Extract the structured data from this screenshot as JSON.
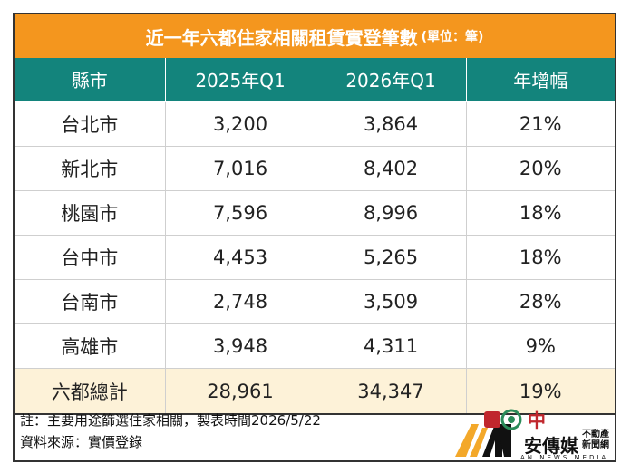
{
  "title": "近一年六都住家相關租賃實登筆數",
  "unit": "(單位：筆)",
  "headers": [
    "縣市",
    "2025年Q1",
    "2026年Q1",
    "年增幅"
  ],
  "rows": [
    [
      "台北市",
      "3,200",
      "3,864",
      "21%"
    ],
    [
      "新北市",
      "7,016",
      "8,402",
      "20%"
    ],
    [
      "桃園市",
      "7,596",
      "8,996",
      "18%"
    ],
    [
      "台中市",
      "4,453",
      "5,265",
      "18%"
    ],
    [
      "台南市",
      "2,748",
      "3,509",
      "28%"
    ],
    [
      "高雄市",
      "3,948",
      "4,311",
      "9%"
    ]
  ],
  "total": [
    "六都總計",
    "28,961",
    "34,347",
    "19%"
  ],
  "notes": {
    "note1": "註：主要用途篩選住家相關，製表時間2026/5/22",
    "note2": "資料來源：實價登錄"
  },
  "logo": {
    "zh_char": "中",
    "name": "安傳媒",
    "sub1": "不動產",
    "sub2": "新聞網",
    "en": "AN NEWS MEDIA"
  },
  "colors": {
    "title_bg": "#f4961e",
    "header_bg": "#13847c",
    "total_bg": "#fdf2d8",
    "logo_gold": "#f3a82a",
    "logo_red": "#c0272d"
  }
}
